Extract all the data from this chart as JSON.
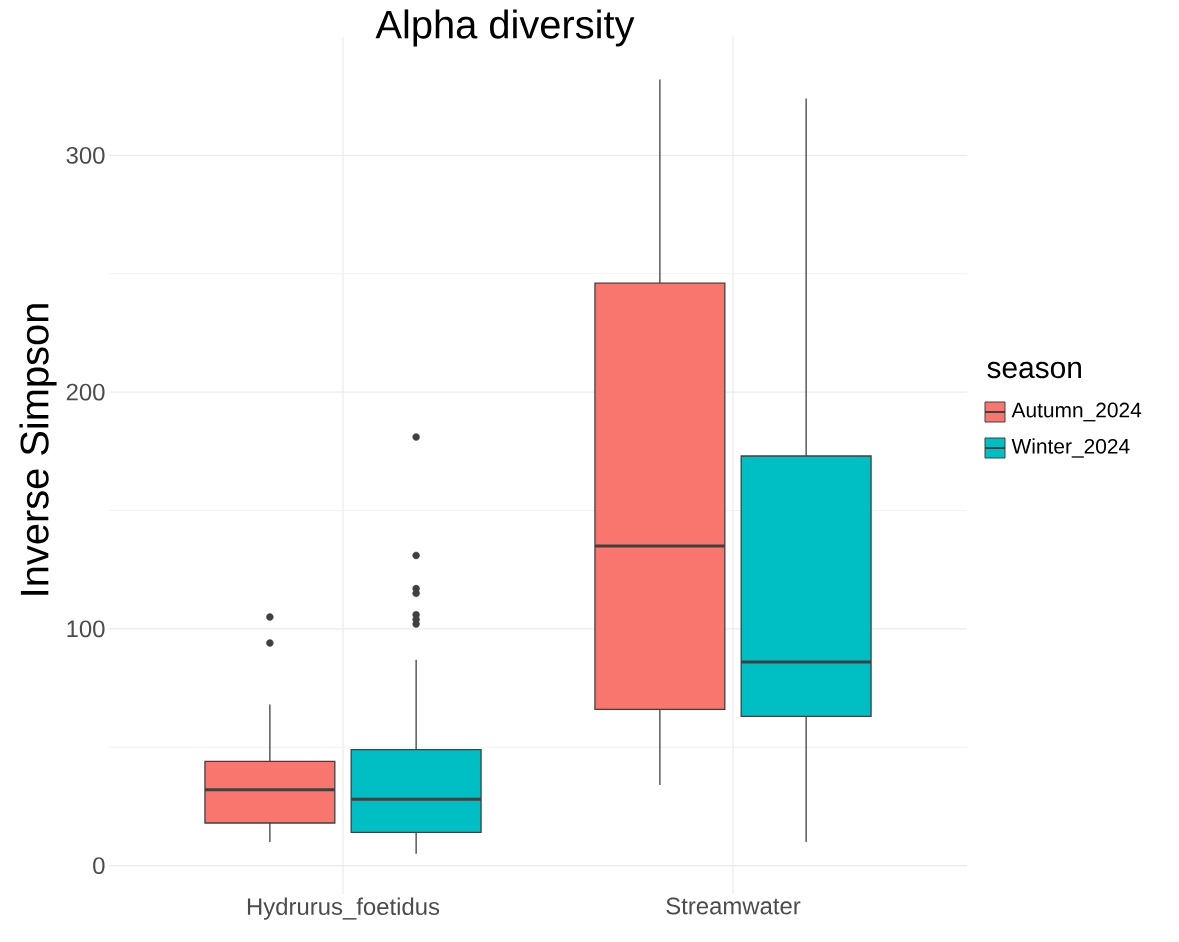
{
  "chart_data": {
    "type": "box",
    "title": "Alpha diversity",
    "ylabel": "Inverse Simpson",
    "legend_title": "season",
    "categories": [
      "Hydrurus_foetidus",
      "Streamwater"
    ],
    "series": [
      {
        "name": "Autumn_2024",
        "color": "#f8766d",
        "boxes": [
          {
            "low": 10,
            "q1": 18,
            "median": 32,
            "q3": 44,
            "high": 68,
            "outliers": [
              105,
              94
            ]
          },
          {
            "low": 34,
            "q1": 66,
            "median": 135,
            "q3": 246,
            "high": 332
          }
        ]
      },
      {
        "name": "Winter_2024",
        "color": "#00bfc4",
        "boxes": [
          {
            "low": 5,
            "q1": 14,
            "median": 28,
            "q3": 49,
            "high": 87,
            "outliers": [
              181,
              131,
              117,
              115,
              106,
              104,
              102
            ]
          },
          {
            "low": 10,
            "q1": 63,
            "median": 86,
            "q3": 173,
            "high": 324
          }
        ]
      }
    ],
    "ylim": [
      -12,
      350
    ],
    "yticks": [
      0,
      100,
      200,
      300
    ],
    "grid": true,
    "legend": "right"
  }
}
